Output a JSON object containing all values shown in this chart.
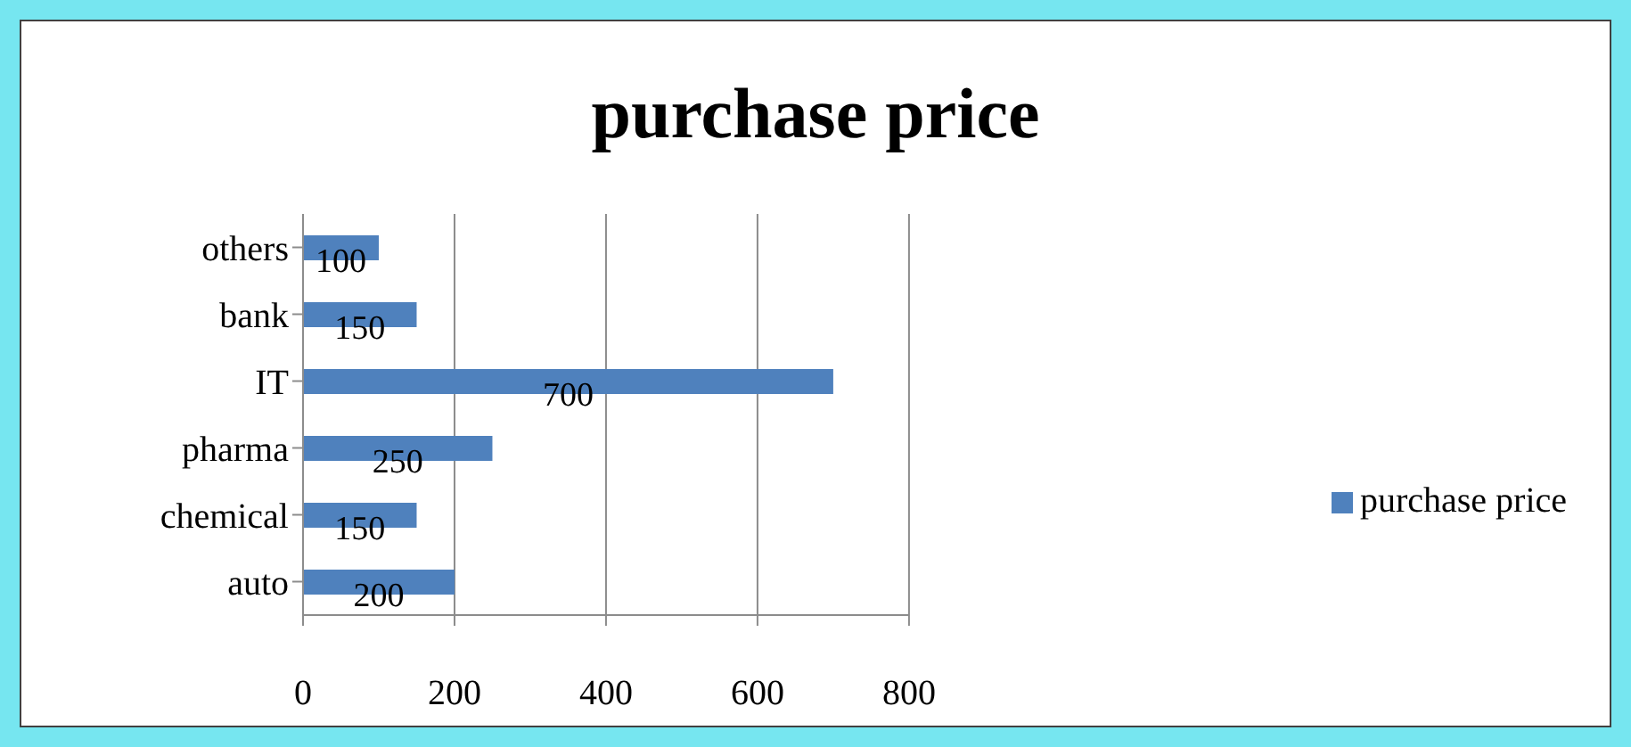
{
  "chart_data": {
    "type": "bar",
    "orientation": "horizontal",
    "title": "purchase price",
    "categories": [
      "others",
      "bank",
      "IT",
      "pharma",
      "chemical",
      "auto"
    ],
    "series": [
      {
        "name": "purchase price",
        "color": "#4f81bd",
        "values": [
          100,
          150,
          700,
          250,
          150,
          200
        ]
      }
    ],
    "xlim": [
      0,
      800
    ],
    "xticks": [
      0,
      200,
      400,
      600,
      800
    ],
    "grid": "x",
    "legend": "right",
    "data_labels": true
  }
}
